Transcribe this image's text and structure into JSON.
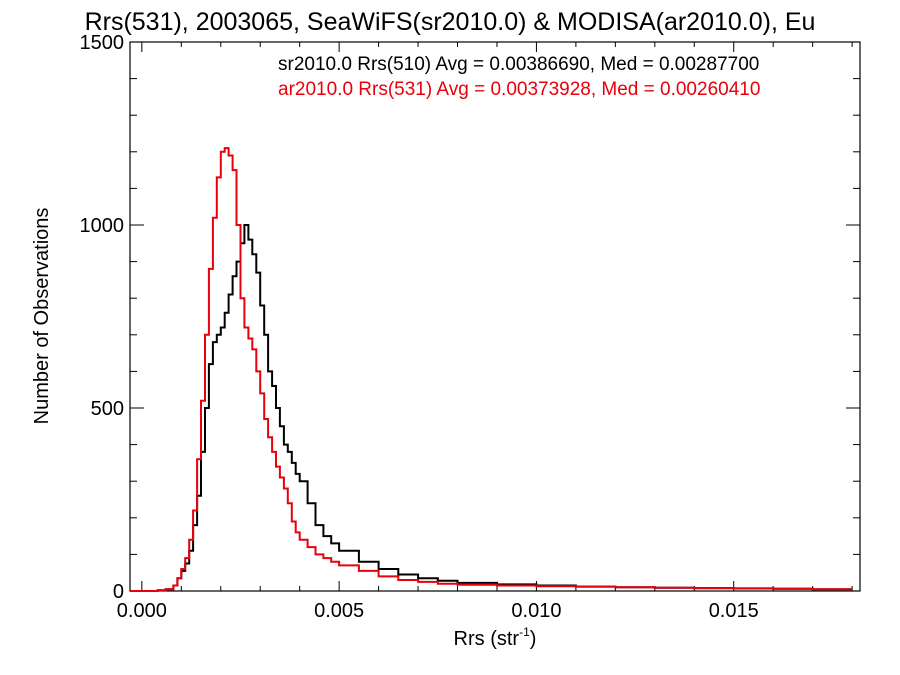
{
  "chart_data": {
    "type": "line",
    "title": "Rrs(531), 2003065, SeaWiFS(sr2010.0) & MODISA(ar2010.0), Eu",
    "xlabel": "Rrs (str",
    "xlabel_sup": "-1",
    "xlabel_end": ")",
    "ylabel": "Number of Observations",
    "xlim": [
      -0.0003,
      0.0182
    ],
    "ylim": [
      0,
      1500
    ],
    "xticks": [
      0.0,
      0.005,
      0.01,
      0.015
    ],
    "xtick_labels": [
      "0.000",
      "0.005",
      "0.010",
      "0.015"
    ],
    "yticks": [
      0,
      500,
      1000,
      1500
    ],
    "ytick_labels": [
      "0",
      "500",
      "1000",
      "1500"
    ],
    "grid": false,
    "legend_position": "top-right",
    "series": [
      {
        "name": "sr2010.0 Rrs(510) Avg = 0.00386690, Med = 0.00287700",
        "color": "#000000",
        "x": [
          -0.0003,
          0.0,
          0.0004,
          0.0006,
          0.0008,
          0.0009,
          0.001,
          0.0011,
          0.0012,
          0.0013,
          0.0014,
          0.0015,
          0.0016,
          0.0017,
          0.0018,
          0.0019,
          0.002,
          0.0021,
          0.0022,
          0.0023,
          0.0024,
          0.0025,
          0.0026,
          0.0027,
          0.0028,
          0.0029,
          0.003,
          0.0031,
          0.0032,
          0.0033,
          0.0034,
          0.0035,
          0.0036,
          0.0037,
          0.0038,
          0.0039,
          0.004,
          0.0042,
          0.0044,
          0.0046,
          0.0048,
          0.005,
          0.0055,
          0.006,
          0.0065,
          0.007,
          0.0075,
          0.008,
          0.009,
          0.01,
          0.011,
          0.012,
          0.013,
          0.014,
          0.015,
          0.016,
          0.017,
          0.018
        ],
        "y": [
          0,
          0,
          2,
          5,
          15,
          35,
          55,
          75,
          110,
          180,
          260,
          380,
          500,
          620,
          680,
          700,
          720,
          760,
          810,
          860,
          900,
          950,
          1000,
          960,
          920,
          870,
          780,
          700,
          600,
          560,
          500,
          450,
          400,
          380,
          350,
          320,
          300,
          240,
          180,
          150,
          130,
          110,
          80,
          60,
          45,
          35,
          28,
          22,
          18,
          15,
          12,
          10,
          9,
          8,
          7,
          6,
          5,
          5
        ]
      },
      {
        "name": "ar2010.0 Rrs(531) Avg = 0.00373928, Med = 0.00260410",
        "color": "#e8000b",
        "x": [
          -0.0003,
          0.0,
          0.0004,
          0.0006,
          0.0008,
          0.0009,
          0.001,
          0.0011,
          0.0012,
          0.0013,
          0.0014,
          0.0015,
          0.0016,
          0.0017,
          0.0018,
          0.0019,
          0.002,
          0.0021,
          0.0022,
          0.0023,
          0.0024,
          0.0025,
          0.0026,
          0.0027,
          0.0028,
          0.0029,
          0.003,
          0.0031,
          0.0032,
          0.0033,
          0.0034,
          0.0035,
          0.0036,
          0.0037,
          0.0038,
          0.0039,
          0.004,
          0.0042,
          0.0044,
          0.0046,
          0.0048,
          0.005,
          0.0055,
          0.006,
          0.0065,
          0.007,
          0.0075,
          0.008,
          0.009,
          0.01,
          0.011,
          0.012,
          0.013,
          0.014,
          0.015,
          0.016,
          0.017,
          0.018
        ],
        "y": [
          0,
          0,
          2,
          5,
          15,
          35,
          60,
          90,
          140,
          220,
          360,
          520,
          700,
          880,
          1020,
          1130,
          1200,
          1210,
          1190,
          1150,
          1000,
          800,
          720,
          690,
          660,
          600,
          540,
          470,
          420,
          380,
          340,
          310,
          280,
          240,
          190,
          160,
          140,
          120,
          100,
          90,
          80,
          70,
          55,
          40,
          30,
          25,
          20,
          17,
          15,
          13,
          12,
          10,
          9,
          8,
          7,
          6,
          5,
          5
        ]
      }
    ]
  }
}
